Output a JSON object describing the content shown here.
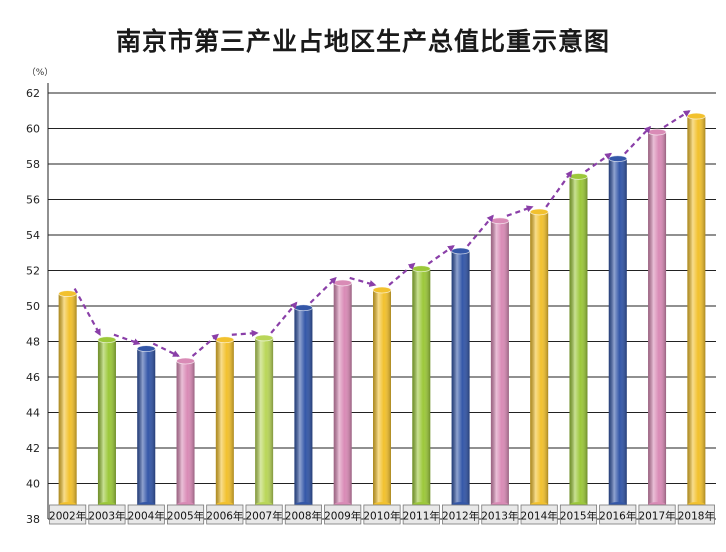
{
  "chart_data": {
    "type": "bar",
    "title": "南京市第三产业占地区生产总值比重示意图",
    "ylabel": "（%）",
    "xlabel": "",
    "ylim": [
      38,
      62
    ],
    "yticks": [
      38,
      40,
      42,
      44,
      46,
      48,
      50,
      52,
      54,
      56,
      58,
      60,
      62
    ],
    "grid": true,
    "legend": "none",
    "categories": [
      "2002年",
      "2003年",
      "2004年",
      "2005年",
      "2006年",
      "2007年",
      "2008年",
      "2009年",
      "2010年",
      "2011年",
      "2012年",
      "2013年",
      "2014年",
      "2015年",
      "2016年",
      "2017年",
      "2018年"
    ],
    "values": [
      50.7,
      48.1,
      47.6,
      46.9,
      48.1,
      48.2,
      49.9,
      51.3,
      50.9,
      52.1,
      53.1,
      54.8,
      55.3,
      57.3,
      58.3,
      59.8,
      60.7
    ],
    "bar_colors": [
      "#f2c12e",
      "#9cc83a",
      "#3457a8",
      "#d98bb6",
      "#f2c12e",
      "#b9d659",
      "#3457a8",
      "#d98bb6",
      "#f2c12e",
      "#9cc83a",
      "#3457a8",
      "#d98bb6",
      "#f2c12e",
      "#9cc83a",
      "#3457a8",
      "#d98bb6",
      "#f2c12e"
    ],
    "arrow_color": "#8a3fa8",
    "trend_arrows": true
  }
}
